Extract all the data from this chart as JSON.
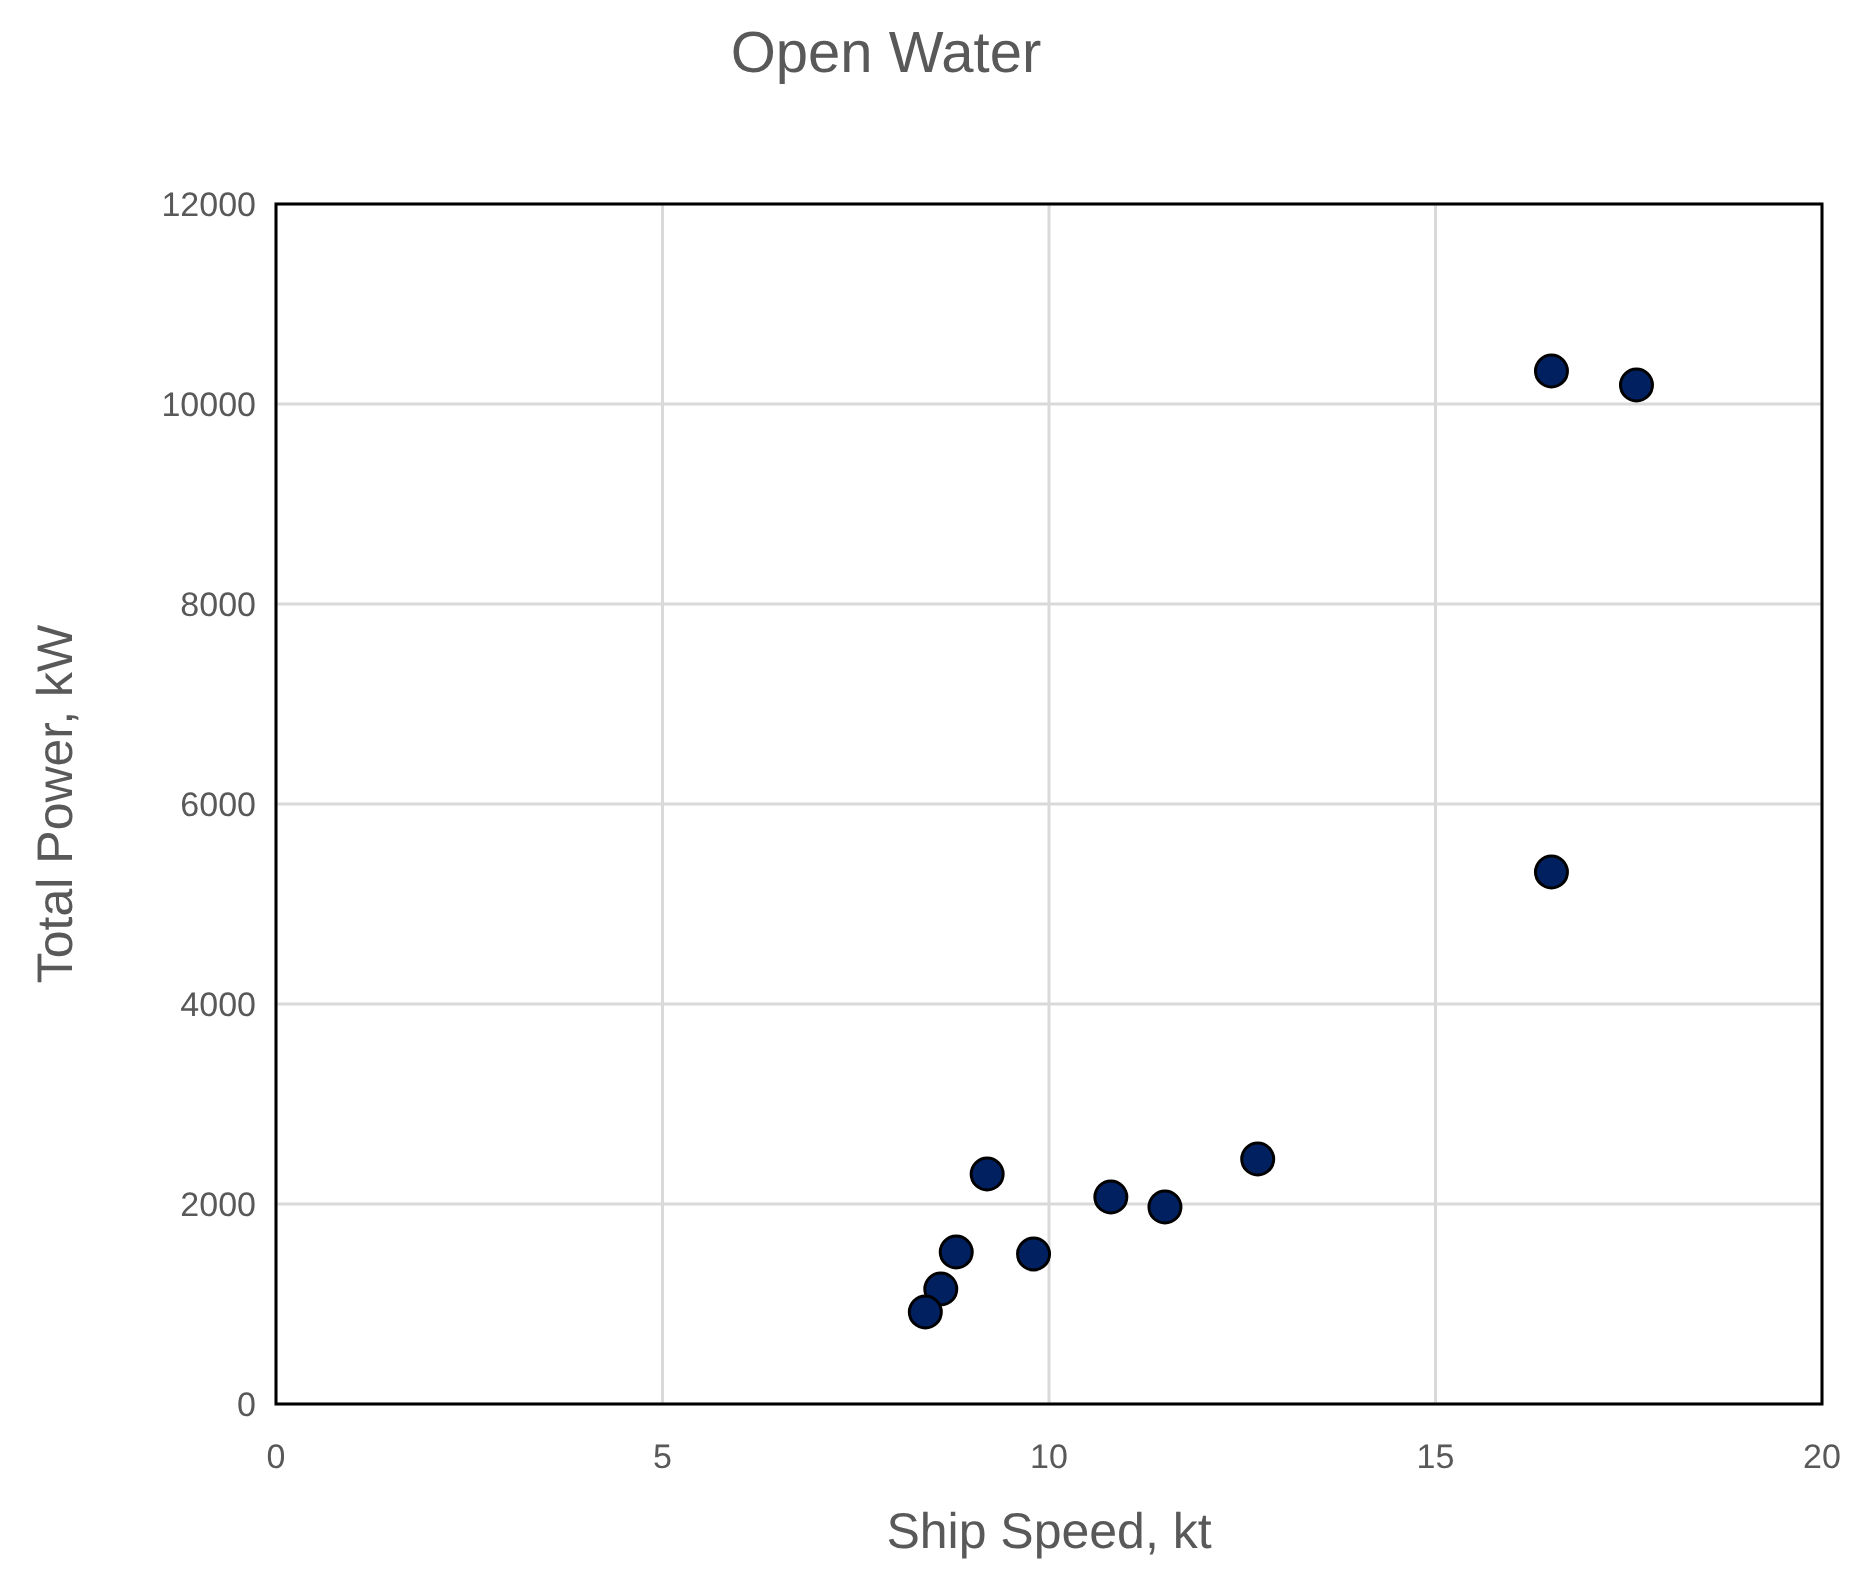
{
  "chart_data": {
    "type": "scatter",
    "title": "Open Water",
    "xlabel": "Ship Speed, kt",
    "ylabel": "Total Power, kW",
    "x": [
      16.5,
      17.6,
      16.5,
      12.7,
      11.5,
      10.8,
      9.8,
      9.2,
      8.8,
      8.6,
      8.4
    ],
    "series": [
      {
        "color": "#002060",
        "values": [
          10330,
          10190,
          5320,
          2450,
          1970,
          2070,
          1500,
          2300,
          1520,
          1150,
          920
        ]
      }
    ],
    "xlim": [
      0,
      20
    ],
    "xticks": [
      0,
      5,
      10,
      15,
      20
    ],
    "ylim": [
      0,
      12000
    ],
    "yticks": [
      0,
      2000,
      4000,
      6000,
      8000,
      10000,
      12000
    ],
    "grid": true,
    "marker": "circle"
  }
}
